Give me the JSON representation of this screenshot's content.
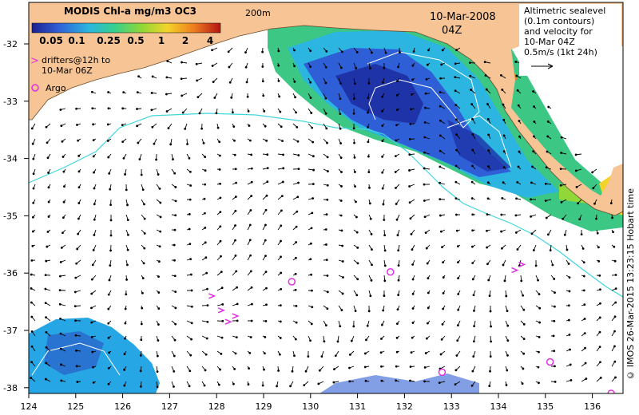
{
  "title": "MODIS Chl-a mg/m3 OC3",
  "colorbar": {
    "ticks": [
      "0.05",
      "0.1",
      "0.25",
      "0.5",
      "1",
      "2",
      "4"
    ],
    "colors": [
      "#1b1f8f",
      "#2f5fd6",
      "#2bb5e0",
      "#36d08c",
      "#8fd837",
      "#f3d329",
      "#ee7c1f",
      "#b41414"
    ]
  },
  "isobath_label": "200m",
  "date": "10-Mar-2008",
  "time": "04Z",
  "legend_lines": [
    "Altimetric sealevel",
    "(0.1m contours)",
    "and velocity for",
    "10-Mar 04Z",
    "0.5m/s (1kt 24h)"
  ],
  "drifters_marker": ">",
  "drifters_lines": [
    "drifters@12h to",
    "10-Mar 06Z"
  ],
  "argo_label": "Argo",
  "x_axis": {
    "ticks": [
      "124",
      "125",
      "126",
      "127",
      "128",
      "129",
      "130",
      "131",
      "132",
      "133",
      "134",
      "135",
      "136"
    ]
  },
  "y_axis": {
    "ticks": [
      "-32",
      "-33",
      "-34",
      "-35",
      "-36",
      "-37",
      "-38"
    ]
  },
  "copyright": "© IMOS 26-Mar-2015 13:23:15 Hobart time",
  "argo_floats": [
    {
      "lon": 129.6,
      "lat": -36.15
    },
    {
      "lon": 131.7,
      "lat": -35.98
    },
    {
      "lon": 132.8,
      "lat": -37.73
    },
    {
      "lon": 135.1,
      "lat": -37.55
    },
    {
      "lon": 136.4,
      "lat": -38.1
    }
  ],
  "drifters": [
    {
      "lon": 127.9,
      "lat": -36.4
    },
    {
      "lon": 128.1,
      "lat": -36.65
    },
    {
      "lon": 128.25,
      "lat": -36.85
    },
    {
      "lon": 128.4,
      "lat": -36.75
    },
    {
      "lon": 134.35,
      "lat": -35.95
    },
    {
      "lon": 134.5,
      "lat": -35.85
    }
  ],
  "colors": {
    "land": "#f6c495",
    "isobath": "#3fd6dc",
    "contour": "#ffffff",
    "marker": "#e030e0"
  }
}
